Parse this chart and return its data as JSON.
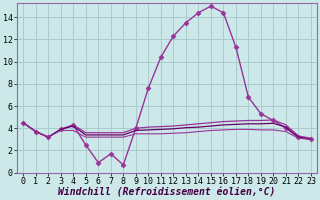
{
  "xlabel": "Windchill (Refroidissement éolien,°C)",
  "background_color": "#cce8e8",
  "grid_color": "#aacccc",
  "line_color": "#993399",
  "line_color2": "#660066",
  "x": [
    0,
    1,
    2,
    3,
    4,
    5,
    6,
    7,
    8,
    9,
    10,
    11,
    12,
    13,
    14,
    15,
    16,
    17,
    18,
    19,
    20,
    21,
    22,
    23
  ],
  "line1": [
    4.5,
    3.7,
    3.2,
    3.9,
    4.3,
    2.5,
    0.9,
    1.7,
    0.7,
    4.0,
    7.6,
    10.4,
    12.3,
    13.5,
    14.4,
    15.0,
    14.4,
    11.3,
    6.8,
    5.3,
    4.7,
    4.0,
    3.2,
    3.0
  ],
  "line2": [
    4.5,
    3.7,
    3.2,
    3.9,
    4.3,
    3.6,
    3.6,
    3.6,
    3.6,
    4.0,
    4.1,
    4.15,
    4.2,
    4.3,
    4.4,
    4.5,
    4.6,
    4.65,
    4.7,
    4.7,
    4.75,
    4.3,
    3.3,
    3.1
  ],
  "line3": [
    4.5,
    3.7,
    3.2,
    3.9,
    4.2,
    3.4,
    3.4,
    3.4,
    3.4,
    3.8,
    3.85,
    3.9,
    3.95,
    4.05,
    4.1,
    4.2,
    4.3,
    4.35,
    4.4,
    4.4,
    4.45,
    4.1,
    3.2,
    3.0
  ],
  "line4": [
    4.5,
    3.7,
    3.2,
    3.8,
    3.8,
    3.2,
    3.2,
    3.2,
    3.2,
    3.5,
    3.5,
    3.5,
    3.55,
    3.6,
    3.7,
    3.8,
    3.85,
    3.9,
    3.9,
    3.85,
    3.85,
    3.7,
    3.1,
    3.0
  ],
  "ylim": [
    0,
    15
  ],
  "xlim": [
    -0.5,
    23.5
  ],
  "yticks": [
    0,
    2,
    4,
    6,
    8,
    10,
    12,
    14
  ],
  "xticks": [
    0,
    1,
    2,
    3,
    4,
    5,
    6,
    7,
    8,
    9,
    10,
    11,
    12,
    13,
    14,
    15,
    16,
    17,
    18,
    19,
    20,
    21,
    22,
    23
  ],
  "marker": "D",
  "marker_size": 2.5,
  "linewidth": 1.0,
  "font_size": 6.5,
  "xlabel_fontsize": 7.0,
  "border_color": "#9966aa"
}
